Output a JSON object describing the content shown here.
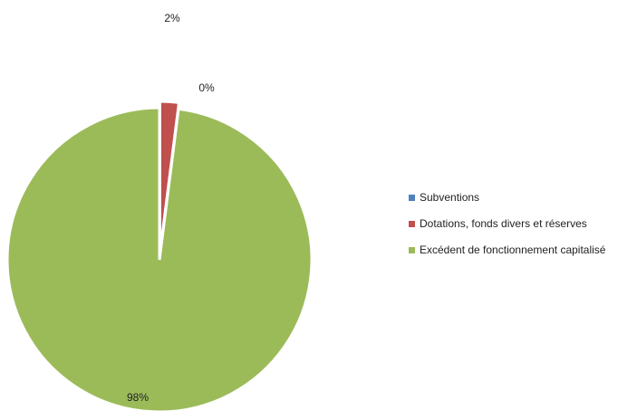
{
  "chart_data": {
    "type": "pie",
    "title": "",
    "categories": [
      "Subventions",
      "Dotations, fonds divers et réserves",
      "Excédent de fonctionnement capitalisé"
    ],
    "values": [
      0,
      2,
      98
    ],
    "data_labels": [
      "0%",
      "2%",
      "98%"
    ],
    "colors": [
      "#4f81bd",
      "#c0504d",
      "#9bbb59"
    ],
    "legend_position": "right",
    "exploded": true
  }
}
